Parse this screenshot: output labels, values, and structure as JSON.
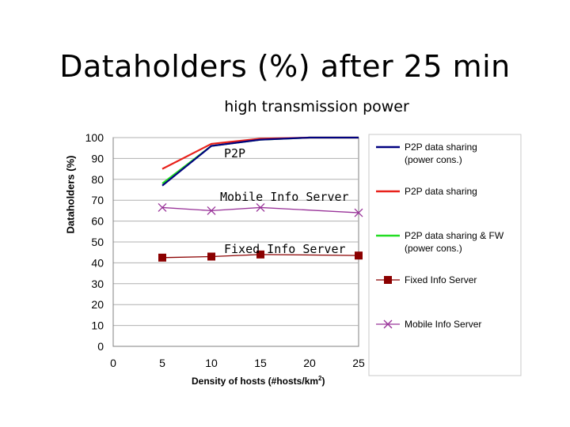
{
  "slide": {
    "title": "Dataholders (%) after 25 min",
    "subtitle": "high transmission power"
  },
  "annotations": {
    "p2p": "P2P",
    "mobile": "Mobile Info Server",
    "fixed": "Fixed Info Server"
  },
  "chart_data": {
    "type": "line",
    "xlabel": "Density of hosts (#hosts/km",
    "xlabel_sup": "2",
    "xlabel_tail": ")",
    "ylabel": "Dataholders (%)",
    "xlim": [
      0,
      25
    ],
    "ylim": [
      0,
      100
    ],
    "x_ticks": [
      0,
      5,
      10,
      15,
      20,
      25
    ],
    "y_ticks": [
      0,
      10,
      20,
      30,
      40,
      50,
      60,
      70,
      80,
      90,
      100
    ],
    "grid": "horizontal",
    "legend_position": "right",
    "series": [
      {
        "name": "P2P data sharing (power cons.)",
        "color": "#000080",
        "marker": "none",
        "x": [
          5,
          10,
          15,
          20,
          25
        ],
        "y": [
          77,
          96,
          99,
          100,
          100
        ]
      },
      {
        "name": "P2P data sharing",
        "color": "#e8211a",
        "marker": "none",
        "x": [
          5,
          10,
          15,
          20,
          25
        ],
        "y": [
          85,
          97,
          99.5,
          100,
          100
        ]
      },
      {
        "name": "P2P data sharing & FW (power cons.)",
        "color": "#22dd22",
        "marker": "none",
        "x": [
          5,
          10,
          15,
          20,
          25
        ],
        "y": [
          78,
          96,
          99,
          100,
          100
        ]
      },
      {
        "name": "Fixed Info Server",
        "color": "#8b0000",
        "marker": "square",
        "x": [
          5,
          10,
          15,
          20,
          25
        ],
        "y": [
          42.5,
          43,
          44,
          null,
          43.5
        ]
      },
      {
        "name": "Mobile Info Server",
        "color": "#993399",
        "marker": "x",
        "x": [
          5,
          10,
          15,
          20,
          25
        ],
        "y": [
          66.5,
          65,
          66.5,
          null,
          64
        ]
      }
    ]
  }
}
